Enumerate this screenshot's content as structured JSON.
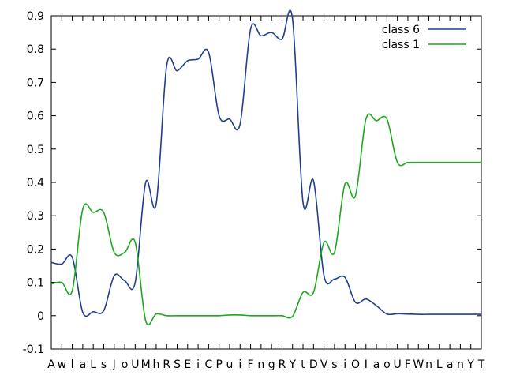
{
  "chart_data": {
    "type": "line",
    "title": "",
    "xlabel": "",
    "ylabel": "",
    "ylim": [
      -0.1,
      0.9
    ],
    "y_ticks": [
      -0.1,
      0,
      0.1,
      0.2,
      0.3,
      0.4,
      0.5,
      0.6,
      0.7,
      0.8,
      0.9
    ],
    "y_tick_labels": [
      "-0.1",
      "0",
      "0.1",
      "0.2",
      "0.3",
      "0.4",
      "0.5",
      "0.6",
      "0.7",
      "0.8",
      "0.9"
    ],
    "categories": [
      "A",
      "w",
      "l",
      "a",
      "L",
      "s",
      "J",
      "o",
      "U",
      "M",
      "h",
      "R",
      "S",
      "E",
      "i",
      "C",
      "P",
      "u",
      "i",
      "F",
      "n",
      "g",
      "R",
      "Y",
      "t",
      "D",
      "V",
      "s",
      "i",
      "O",
      "I",
      "a",
      "o",
      "U",
      "F",
      "W",
      "n",
      "L",
      "a",
      "n",
      "Y",
      "T"
    ],
    "grid": false,
    "legend_position": "top-right",
    "series": [
      {
        "name": "class 6",
        "color": "#1f3f8f",
        "values": [
          0.16,
          0.155,
          0.175,
          0.01,
          0.012,
          0.015,
          0.12,
          0.105,
          0.1,
          0.4,
          0.335,
          0.75,
          0.735,
          0.765,
          0.77,
          0.79,
          0.6,
          0.59,
          0.575,
          0.86,
          0.84,
          0.85,
          0.83,
          0.89,
          0.34,
          0.405,
          0.12,
          0.11,
          0.115,
          0.04,
          0.05,
          0.03,
          0.005,
          0.006,
          0.005,
          0.004,
          0.004,
          0.004,
          0.004,
          0.004,
          0.004,
          0.004
        ]
      },
      {
        "name": "class 1",
        "color": "#1fa71f",
        "values": [
          0.095,
          0.1,
          0.075,
          0.32,
          0.31,
          0.31,
          0.19,
          0.19,
          0.22,
          -0.015,
          0.005,
          0.0,
          0.0,
          0.0,
          0.0,
          0.0,
          0.0,
          0.002,
          0.002,
          0.0,
          0.0,
          0.0,
          0.0,
          -0.002,
          0.07,
          0.07,
          0.22,
          0.19,
          0.395,
          0.36,
          0.59,
          0.585,
          0.59,
          0.46,
          0.46,
          0.46,
          0.46,
          0.46,
          0.46,
          0.46,
          0.46,
          0.46
        ]
      }
    ]
  }
}
